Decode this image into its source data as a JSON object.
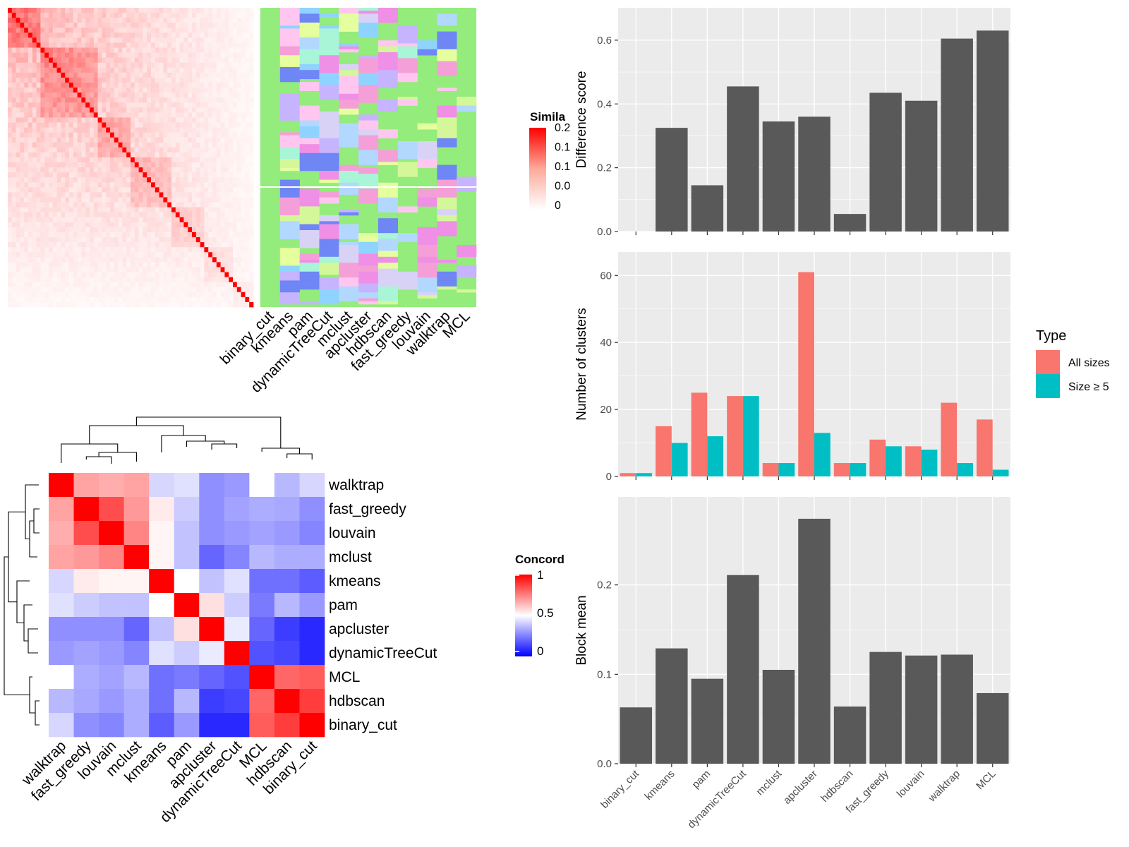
{
  "colors": {
    "panel_bg": "#ebebeb",
    "bar_gray": "#595959",
    "all_sizes": "#f8766d",
    "size_ge5": "#00bfc4",
    "heat_hi": "#ff0000",
    "heat_mid": "#ffffff",
    "heat_lo": "#0000ff",
    "assign_base": "#93ec7b"
  },
  "similarity_legend": {
    "title": "Simila",
    "ticks": [
      "0.2",
      "0.1",
      "0.1",
      "0.0",
      "0"
    ]
  },
  "concordance_legend": {
    "title": "Concord",
    "ticks": [
      "1",
      "0.5",
      "0"
    ]
  },
  "assignment_methods": [
    "binary_cut",
    "kmeans",
    "pam",
    "dynamicTreeCut",
    "mclust",
    "apcluster",
    "hdbscan",
    "fast_greedy",
    "louvain",
    "walktrap",
    "MCL"
  ],
  "concordance": {
    "row_labels": [
      "walktrap",
      "fast_greedy",
      "louvain",
      "mclust",
      "kmeans",
      "pam",
      "apcluster",
      "dynamicTreeCut",
      "MCL",
      "hdbscan",
      "binary_cut"
    ],
    "col_labels": [
      "walktrap",
      "fast_greedy",
      "louvain",
      "mclust",
      "kmeans",
      "pam",
      "apcluster",
      "dynamicTreeCut",
      "MCL",
      "hdbscan",
      "binary_cut"
    ]
  },
  "chart_data": [
    {
      "type": "bar",
      "panel": "difference_score",
      "ylabel": "Difference score",
      "categories": [
        "binary_cut",
        "kmeans",
        "pam",
        "dynamicTreeCut",
        "mclust",
        "apcluster",
        "hdbscan",
        "fast_greedy",
        "louvain",
        "walktrap",
        "MCL"
      ],
      "values": [
        0.0,
        0.325,
        0.145,
        0.455,
        0.345,
        0.36,
        0.055,
        0.435,
        0.41,
        0.605,
        0.63
      ],
      "ylim": [
        0,
        0.67
      ],
      "yticks": [
        "0.0",
        "0.2",
        "0.4",
        "0.6"
      ]
    },
    {
      "type": "bar",
      "panel": "number_of_clusters",
      "ylabel": "Number of clusters",
      "categories": [
        "binary_cut",
        "kmeans",
        "pam",
        "dynamicTreeCut",
        "mclust",
        "apcluster",
        "hdbscan",
        "fast_greedy",
        "louvain",
        "walktrap",
        "MCL"
      ],
      "series": [
        {
          "name": "All sizes",
          "values": [
            1,
            15,
            25,
            24,
            4,
            61,
            4,
            11,
            9,
            22,
            17
          ]
        },
        {
          "name": "Size ≥ 5",
          "values": [
            1,
            10,
            12,
            24,
            4,
            13,
            4,
            9,
            8,
            4,
            2
          ]
        }
      ],
      "ylim": [
        0,
        64
      ],
      "yticks": [
        "0",
        "20",
        "40",
        "60"
      ],
      "legend": {
        "title": "Type",
        "position": "right"
      }
    },
    {
      "type": "bar",
      "panel": "block_mean",
      "ylabel": "Block mean",
      "categories": [
        "binary_cut",
        "kmeans",
        "pam",
        "dynamicTreeCut",
        "mclust",
        "apcluster",
        "hdbscan",
        "fast_greedy",
        "louvain",
        "walktrap",
        "MCL"
      ],
      "values": [
        0.063,
        0.129,
        0.095,
        0.211,
        0.105,
        0.274,
        0.064,
        0.125,
        0.121,
        0.122,
        0.079
      ],
      "ylim": [
        0,
        0.285
      ],
      "yticks": [
        "0.0",
        "0.1",
        "0.2"
      ]
    },
    {
      "type": "heatmap",
      "panel": "concordance",
      "rows": [
        "walktrap",
        "fast_greedy",
        "louvain",
        "mclust",
        "kmeans",
        "pam",
        "apcluster",
        "dynamicTreeCut",
        "MCL",
        "hdbscan",
        "binary_cut"
      ],
      "cols": [
        "walktrap",
        "fast_greedy",
        "louvain",
        "mclust",
        "kmeans",
        "pam",
        "apcluster",
        "dynamicTreeCut",
        "MCL",
        "hdbscan",
        "binary_cut"
      ],
      "values": [
        [
          1.0,
          0.68,
          0.66,
          0.68,
          0.42,
          0.44,
          0.28,
          0.3,
          0.5,
          0.36,
          0.42
        ],
        [
          0.68,
          1.0,
          0.85,
          0.7,
          0.54,
          0.4,
          0.28,
          0.32,
          0.34,
          0.33,
          0.28
        ],
        [
          0.66,
          0.85,
          1.0,
          0.74,
          0.52,
          0.38,
          0.28,
          0.3,
          0.32,
          0.3,
          0.26
        ],
        [
          0.68,
          0.7,
          0.74,
          1.0,
          0.52,
          0.38,
          0.2,
          0.26,
          0.36,
          0.34,
          0.34
        ],
        [
          0.42,
          0.54,
          0.52,
          0.52,
          1.0,
          0.5,
          0.38,
          0.44,
          0.22,
          0.22,
          0.18
        ],
        [
          0.44,
          0.4,
          0.38,
          0.38,
          0.5,
          1.0,
          0.56,
          0.4,
          0.24,
          0.36,
          0.3
        ],
        [
          0.28,
          0.28,
          0.28,
          0.2,
          0.38,
          0.56,
          1.0,
          0.46,
          0.2,
          0.12,
          0.08
        ],
        [
          0.3,
          0.32,
          0.3,
          0.26,
          0.44,
          0.4,
          0.46,
          1.0,
          0.16,
          0.14,
          0.08
        ],
        [
          0.5,
          0.34,
          0.32,
          0.36,
          0.22,
          0.24,
          0.2,
          0.16,
          1.0,
          0.8,
          0.82
        ],
        [
          0.36,
          0.33,
          0.3,
          0.34,
          0.22,
          0.36,
          0.12,
          0.14,
          0.8,
          1.0,
          0.88
        ],
        [
          0.42,
          0.28,
          0.26,
          0.34,
          0.18,
          0.3,
          0.08,
          0.08,
          0.82,
          0.88,
          1.0
        ]
      ],
      "legend": {
        "range": [
          0,
          1
        ]
      }
    }
  ]
}
